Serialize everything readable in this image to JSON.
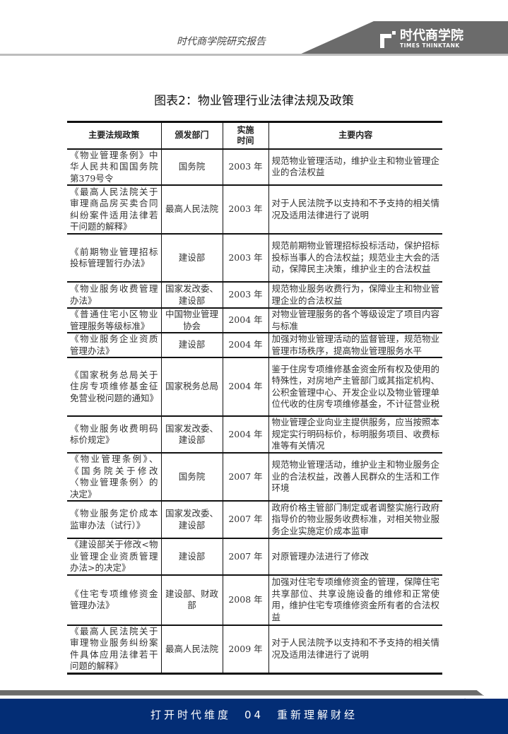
{
  "header": {
    "title": "时代商学院研究报告",
    "logo_cn": "时代商学院",
    "logo_en": "TIMES THINKTANK"
  },
  "figure_title": "图表2：物业管理行业法律法规及政策",
  "table": {
    "headers": [
      "主要法规政策",
      "颁发部门",
      "实施时间",
      "主要内容"
    ],
    "rows": [
      [
        "《物业管理条例》中华人民共和国国务院第379号令",
        "国务院",
        "2003 年",
        "规范物业管理活动，维护业主和物业管理企业的合法权益"
      ],
      [
        "《最高人民法院关于审理商品房买卖合同纠纷案件适用法律若干问题的解释》",
        "最高人民法院",
        "2003 年",
        "对于人民法院予以支持和不予支持的相关情况及适用法律进行了说明"
      ],
      [
        "《前期物业管理招标投标管理暂行办法》",
        "建设部",
        "2003 年",
        "规范前期物业管理招标投标活动，保护招标投标当事人的合法权益；规范业主大会的活动，保障民主决策，维护业主的合法权益"
      ],
      [
        "《物业服务收费管理办法》",
        "国家发改委、建设部",
        "2003 年",
        "规范物业服务收费行为，保障业主和物业管理企业的合法权益"
      ],
      [
        "《普通住宅小区物业管理服务等级标准》",
        "中国物业管理协会",
        "2004 年",
        "对物业管理服务的各个等级设定了项目内容与标准"
      ],
      [
        "《物业服务企业资质管理办法》",
        "建设部",
        "2004 年",
        "加强对物业管理活动的监督管理，规范物业管理市场秩序，提高物业管理服务水平"
      ],
      [
        "《国家税务总局关于住房专项维修基金征免营业税问题的通知》",
        "国家税务总局",
        "2004 年",
        "鉴于住房专项维修基金资金所有权及使用的特殊性，对房地产主管部门或其指定机构、公积金管理中心、开发企业以及物业管理单位代收的住房专项维修基金，不计征营业税"
      ],
      [
        "《物业服务收费明码标价规定》",
        "国家发改委、建设部",
        "2004 年",
        "物业管理企业向业主提供服务，应当按照本规定实行明码标价，标明服务项目、收费标准等有关情况"
      ],
      [
        "《物业管理条例》、《国务院关于修改〈物业管理条例〉的决定》",
        "国务院",
        "2007 年",
        "规范物业管理活动，维护业主和物业服务企业的合法权益，改善人民群众的生活和工作环境"
      ],
      [
        "《物业服务定价成本监审办法（试行）》",
        "国家发改委、建设部",
        "2007 年",
        "政府价格主管部门制定或者调整实施行政府指导价的物业服务收费标准，对相关物业服务企业实施定价成本监审"
      ],
      [
        "《建设部关于修改<物业管理企业资质管理办法>的决定》",
        "建设部",
        "2007 年",
        "对原管理办法进行了修改"
      ],
      [
        "《住宅专项维修资金管理办法》",
        "建设部、财政部",
        "2008 年",
        "加强对住宅专项维修资金的管理，保障住宅共享部位、共享设施设备的维修和正常使用，维护住宅专项维修资金所有者的合法权益"
      ],
      [
        "《最高人民法院关于审理物业服务纠纷案件具体应用法律若干问题的解释》",
        "最高人民法院",
        "2009 年",
        "对于人民法院予以支持和不予支持的相关情况及适用法律进行了说明"
      ]
    ]
  },
  "page_number": "4",
  "footer": {
    "text": "打开时代维度　04　重新理解财经"
  },
  "colors": {
    "footer_bg": "#032d75",
    "header_band": "#6b6b6b"
  }
}
